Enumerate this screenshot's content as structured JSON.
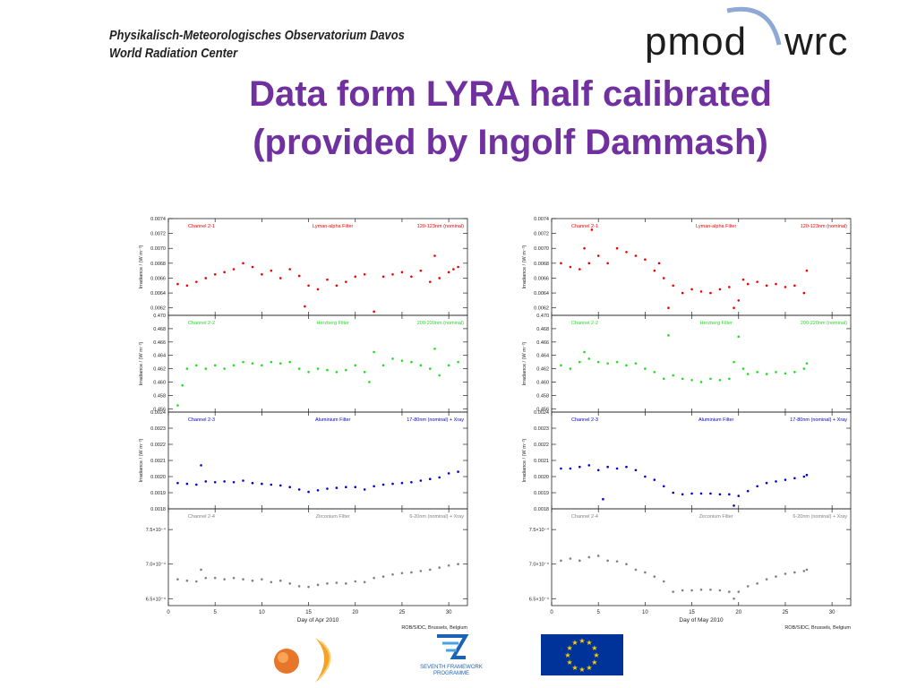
{
  "header": {
    "institute_line1": "Physikalisch-Meteorologisches Observatorium Davos",
    "institute_line2": "World Radiation Center",
    "logo_left": "pmod",
    "logo_right": "wrc"
  },
  "slide": {
    "title_line1": "Data form LYRA half calibrated",
    "title_line2": "(provided by Ingolf Dammash)"
  },
  "footer_logos": {
    "fp7_text1": "SEVENTH FRAMEWORK",
    "fp7_text2": "PROGRAMME"
  },
  "colors": {
    "title": "#7030a0",
    "ch1": "#ee0000",
    "ch2": "#22dd22",
    "ch3": "#0000cc",
    "ch4": "#808080",
    "eu_blue": "#003399",
    "eu_star": "#ffcc00"
  },
  "chart_data": [
    {
      "type": "scatter",
      "xlabel": "Day of Apr 2010",
      "credit": "ROB/SIDC, Brussels, Belgium",
      "xlim": [
        0,
        32
      ],
      "xticks": [
        0,
        5,
        10,
        15,
        20,
        25,
        30
      ],
      "panels": [
        {
          "channel": "Channel 2-1",
          "filter": "Lyman-alpha Filter",
          "band": "120-123nm (nominal)",
          "ylabel": "Irradiance / (W m⁻²)",
          "ylim": [
            0.0061,
            0.0074
          ],
          "yticks": [
            "0.0062",
            "0.0064",
            "0.0066",
            "0.0068",
            "0.0070",
            "0.0072",
            "0.0074"
          ],
          "ytick_values": [
            0.0062,
            0.0064,
            0.0066,
            0.0068,
            0.007,
            0.0072,
            0.0074
          ],
          "x": [
            1,
            2,
            3,
            4,
            5,
            6,
            7,
            8,
            9,
            10,
            11,
            12,
            13,
            14,
            14.6,
            15,
            16,
            17,
            18,
            19,
            20,
            21,
            22,
            23,
            24,
            25,
            26,
            27,
            28,
            28.5,
            29,
            30,
            30.5,
            31
          ],
          "y": [
            0.00652,
            0.0065,
            0.00655,
            0.0066,
            0.00665,
            0.00668,
            0.00672,
            0.0068,
            0.00675,
            0.00665,
            0.0067,
            0.0066,
            0.00672,
            0.00663,
            0.00622,
            0.0065,
            0.00645,
            0.00658,
            0.0065,
            0.00655,
            0.00662,
            0.00665,
            0.00615,
            0.00662,
            0.00665,
            0.00668,
            0.00662,
            0.0067,
            0.00655,
            0.0069,
            0.0066,
            0.00668,
            0.00672,
            0.00675
          ]
        },
        {
          "channel": "Channel 2-2",
          "filter": "Herzberg Filter",
          "band": "200-220nm (nominal)",
          "ylabel": "Irradiance / (W m⁻²)",
          "ylim": [
            0.4555,
            0.47
          ],
          "yticks": [
            "0.456",
            "0.458",
            "0.460",
            "0.462",
            "0.464",
            "0.466",
            "0.468",
            "0.470"
          ],
          "ytick_values": [
            0.456,
            0.458,
            0.46,
            0.462,
            0.464,
            0.466,
            0.468,
            0.47
          ],
          "x": [
            1,
            1.5,
            2,
            3,
            4,
            5,
            6,
            7,
            8,
            9,
            10,
            11,
            12,
            13,
            14,
            15,
            16,
            17,
            18,
            19,
            20,
            21,
            21.5,
            22,
            23,
            24,
            25,
            26,
            27,
            28,
            28.5,
            29,
            30,
            31
          ],
          "y": [
            0.4565,
            0.4595,
            0.462,
            0.4625,
            0.462,
            0.4625,
            0.462,
            0.4625,
            0.463,
            0.4628,
            0.4625,
            0.463,
            0.4628,
            0.463,
            0.462,
            0.4615,
            0.462,
            0.4618,
            0.4615,
            0.4618,
            0.4625,
            0.4615,
            0.46,
            0.4645,
            0.4625,
            0.4635,
            0.4632,
            0.463,
            0.4625,
            0.462,
            0.465,
            0.461,
            0.4625,
            0.463
          ]
        },
        {
          "channel": "Channel 2-3",
          "filter": "Aluminium Filter",
          "band": "17-80nm (nominal) + Xray",
          "ylabel": "Irradiance / (W m⁻²)",
          "ylim": [
            0.0018,
            0.0024
          ],
          "yticks": [
            "0.0018",
            "0.0019",
            "0.0020",
            "0.0021",
            "0.0022",
            "0.0023",
            "0.0024"
          ],
          "ytick_values": [
            0.0018,
            0.0019,
            0.002,
            0.0021,
            0.0022,
            0.0023,
            0.0024
          ],
          "x": [
            1,
            2,
            3,
            3.5,
            4,
            5,
            6,
            7,
            8,
            9,
            10,
            11,
            12,
            13,
            14,
            15,
            16,
            17,
            18,
            19,
            20,
            21,
            22,
            23,
            24,
            25,
            26,
            27,
            28,
            29,
            30,
            31
          ],
          "y": [
            0.00196,
            0.001955,
            0.00195,
            0.00207,
            0.00197,
            0.001965,
            0.00197,
            0.001965,
            0.001975,
            0.00196,
            0.001955,
            0.00195,
            0.001945,
            0.001935,
            0.00192,
            0.001905,
            0.001915,
            0.001925,
            0.00193,
            0.001935,
            0.001935,
            0.00192,
            0.00194,
            0.00195,
            0.001955,
            0.00196,
            0.001965,
            0.001975,
            0.001985,
            0.001995,
            0.00202,
            0.00203
          ]
        },
        {
          "channel": "Channel 2-4",
          "filter": "Zirconium Filter",
          "band": "6-20nm (nominal) + Xray",
          "ylabel": "",
          "ylim": [
            0.00064,
            0.00078
          ],
          "yticks": [
            "6.5×10⁻⁴",
            "7.0×10⁻⁴",
            "7.5×10⁻⁴"
          ],
          "ytick_values": [
            0.00065,
            0.0007,
            0.00075
          ],
          "x": [
            1,
            2,
            3,
            3.5,
            4,
            5,
            6,
            7,
            8,
            9,
            10,
            11,
            12,
            13,
            14,
            15,
            16,
            17,
            18,
            19,
            20,
            21,
            22,
            23,
            24,
            25,
            26,
            27,
            28,
            29,
            30,
            31
          ],
          "y": [
            0.000678,
            0.000676,
            0.000675,
            0.000692,
            0.00068,
            0.00068,
            0.000678,
            0.00068,
            0.000678,
            0.000676,
            0.000678,
            0.000674,
            0.000676,
            0.000672,
            0.000668,
            0.000667,
            0.00067,
            0.000672,
            0.000673,
            0.000672,
            0.000675,
            0.000674,
            0.00068,
            0.000682,
            0.000685,
            0.000687,
            0.000688,
            0.00069,
            0.000692,
            0.000695,
            0.000698,
            0.0007
          ]
        }
      ]
    },
    {
      "type": "scatter",
      "xlabel": "Day of May 2010",
      "credit": "ROB/SIDC, Brussels, Belgium",
      "xlim": [
        0,
        32
      ],
      "xticks": [
        0,
        5,
        10,
        15,
        20,
        25,
        30
      ],
      "panels": [
        {
          "channel": "Channel 2-1",
          "filter": "Lyman-alpha Filter",
          "band": "120-123nm (nominal)",
          "ylabel": "Irradiance / (W m⁻²)",
          "ylim": [
            0.0061,
            0.0074
          ],
          "yticks": [
            "0.0062",
            "0.0064",
            "0.0066",
            "0.0068",
            "0.0070",
            "0.0072",
            "0.0074"
          ],
          "ytick_values": [
            0.0062,
            0.0064,
            0.0066,
            0.0068,
            0.007,
            0.0072,
            0.0074
          ],
          "x": [
            1,
            2,
            3,
            3.5,
            4,
            4.3,
            5,
            6,
            7,
            8,
            9,
            10,
            11,
            11.5,
            12,
            12.5,
            13,
            14,
            15,
            16,
            17,
            18,
            19,
            19.5,
            20,
            20.5,
            21,
            22,
            23,
            24,
            25,
            26,
            27,
            27.3
          ],
          "y": [
            0.0068,
            0.00675,
            0.00672,
            0.007,
            0.0068,
            0.00725,
            0.0069,
            0.0068,
            0.007,
            0.00695,
            0.0069,
            0.00685,
            0.0067,
            0.0068,
            0.0066,
            0.0062,
            0.0065,
            0.0064,
            0.00645,
            0.00642,
            0.0064,
            0.00645,
            0.00648,
            0.0062,
            0.0063,
            0.00658,
            0.00652,
            0.00655,
            0.0065,
            0.00652,
            0.00648,
            0.0065,
            0.0064,
            0.0067
          ]
        },
        {
          "channel": "Channel 2-2",
          "filter": "Herzberg Filter",
          "band": "200-220nm (nominal)",
          "ylabel": "Irradiance / (W m⁻²)",
          "ylim": [
            0.4555,
            0.47
          ],
          "yticks": [
            "0.456",
            "0.458",
            "0.460",
            "0.462",
            "0.464",
            "0.466",
            "0.468",
            "0.470"
          ],
          "ytick_values": [
            0.456,
            0.458,
            0.46,
            0.462,
            0.464,
            0.466,
            0.468,
            0.47
          ],
          "x": [
            1,
            2,
            3,
            3.5,
            4,
            5,
            6,
            7,
            8,
            9,
            10,
            11,
            12,
            12.5,
            13,
            14,
            15,
            16,
            17,
            18,
            19,
            19.5,
            20,
            20.5,
            21,
            22,
            23,
            24,
            25,
            26,
            27,
            27.3
          ],
          "y": [
            0.4625,
            0.462,
            0.463,
            0.4645,
            0.4635,
            0.463,
            0.4628,
            0.463,
            0.4625,
            0.4628,
            0.462,
            0.4615,
            0.4605,
            0.467,
            0.461,
            0.4605,
            0.4603,
            0.46,
            0.4605,
            0.4603,
            0.4605,
            0.463,
            0.4668,
            0.462,
            0.4612,
            0.4615,
            0.4612,
            0.4615,
            0.4613,
            0.4615,
            0.462,
            0.4628
          ]
        },
        {
          "channel": "Channel 2-3",
          "filter": "Aluminium Filter",
          "band": "17-80nm (nominal) + Xray",
          "ylabel": "Irradiance / (W m⁻²)",
          "ylim": [
            0.0018,
            0.0024
          ],
          "yticks": [
            "0.0018",
            "0.0019",
            "0.0020",
            "0.0021",
            "0.0022",
            "0.0023",
            "0.0024"
          ],
          "ytick_values": [
            0.0018,
            0.0019,
            0.002,
            0.0021,
            0.0022,
            0.0023,
            0.0024
          ],
          "x": [
            1,
            2,
            3,
            4,
            5,
            5.5,
            6,
            7,
            8,
            9,
            10,
            11,
            12,
            13,
            14,
            15,
            16,
            17,
            18,
            19,
            19.5,
            20,
            21,
            22,
            23,
            24,
            25,
            26,
            27,
            27.3
          ],
          "y": [
            0.00205,
            0.00205,
            0.00206,
            0.00207,
            0.00204,
            0.00186,
            0.00206,
            0.00205,
            0.00206,
            0.00204,
            0.002,
            0.00198,
            0.00194,
            0.0019,
            0.00189,
            0.001895,
            0.001895,
            0.001895,
            0.00189,
            0.00189,
            0.00182,
            0.00188,
            0.00191,
            0.00194,
            0.00196,
            0.00197,
            0.00198,
            0.00199,
            0.002,
            0.00201
          ]
        },
        {
          "channel": "Channel 2-4",
          "filter": "Zirconium Filter",
          "band": "6-20nm (nominal) + Xray",
          "ylabel": "",
          "ylim": [
            0.00064,
            0.00078
          ],
          "yticks": [
            "6.5×10⁻⁴",
            "7.0×10⁻⁴",
            "7.5×10⁻⁴"
          ],
          "ytick_values": [
            0.00065,
            0.0007,
            0.00075
          ],
          "x": [
            1,
            2,
            3,
            4,
            5,
            6,
            7,
            8,
            9,
            10,
            11,
            12,
            13,
            14,
            15,
            16,
            17,
            18,
            19,
            19.5,
            20,
            21,
            22,
            23,
            24,
            25,
            26,
            27,
            27.3
          ],
          "y": [
            0.000705,
            0.000708,
            0.000705,
            0.00071,
            0.000712,
            0.000705,
            0.000704,
            0.0007,
            0.000692,
            0.000688,
            0.000682,
            0.000675,
            0.00066,
            0.000662,
            0.000662,
            0.000663,
            0.000663,
            0.000662,
            0.00066,
            0.00065,
            0.00066,
            0.000668,
            0.000672,
            0.000678,
            0.000682,
            0.000686,
            0.000688,
            0.00069,
            0.000692
          ]
        }
      ]
    }
  ]
}
